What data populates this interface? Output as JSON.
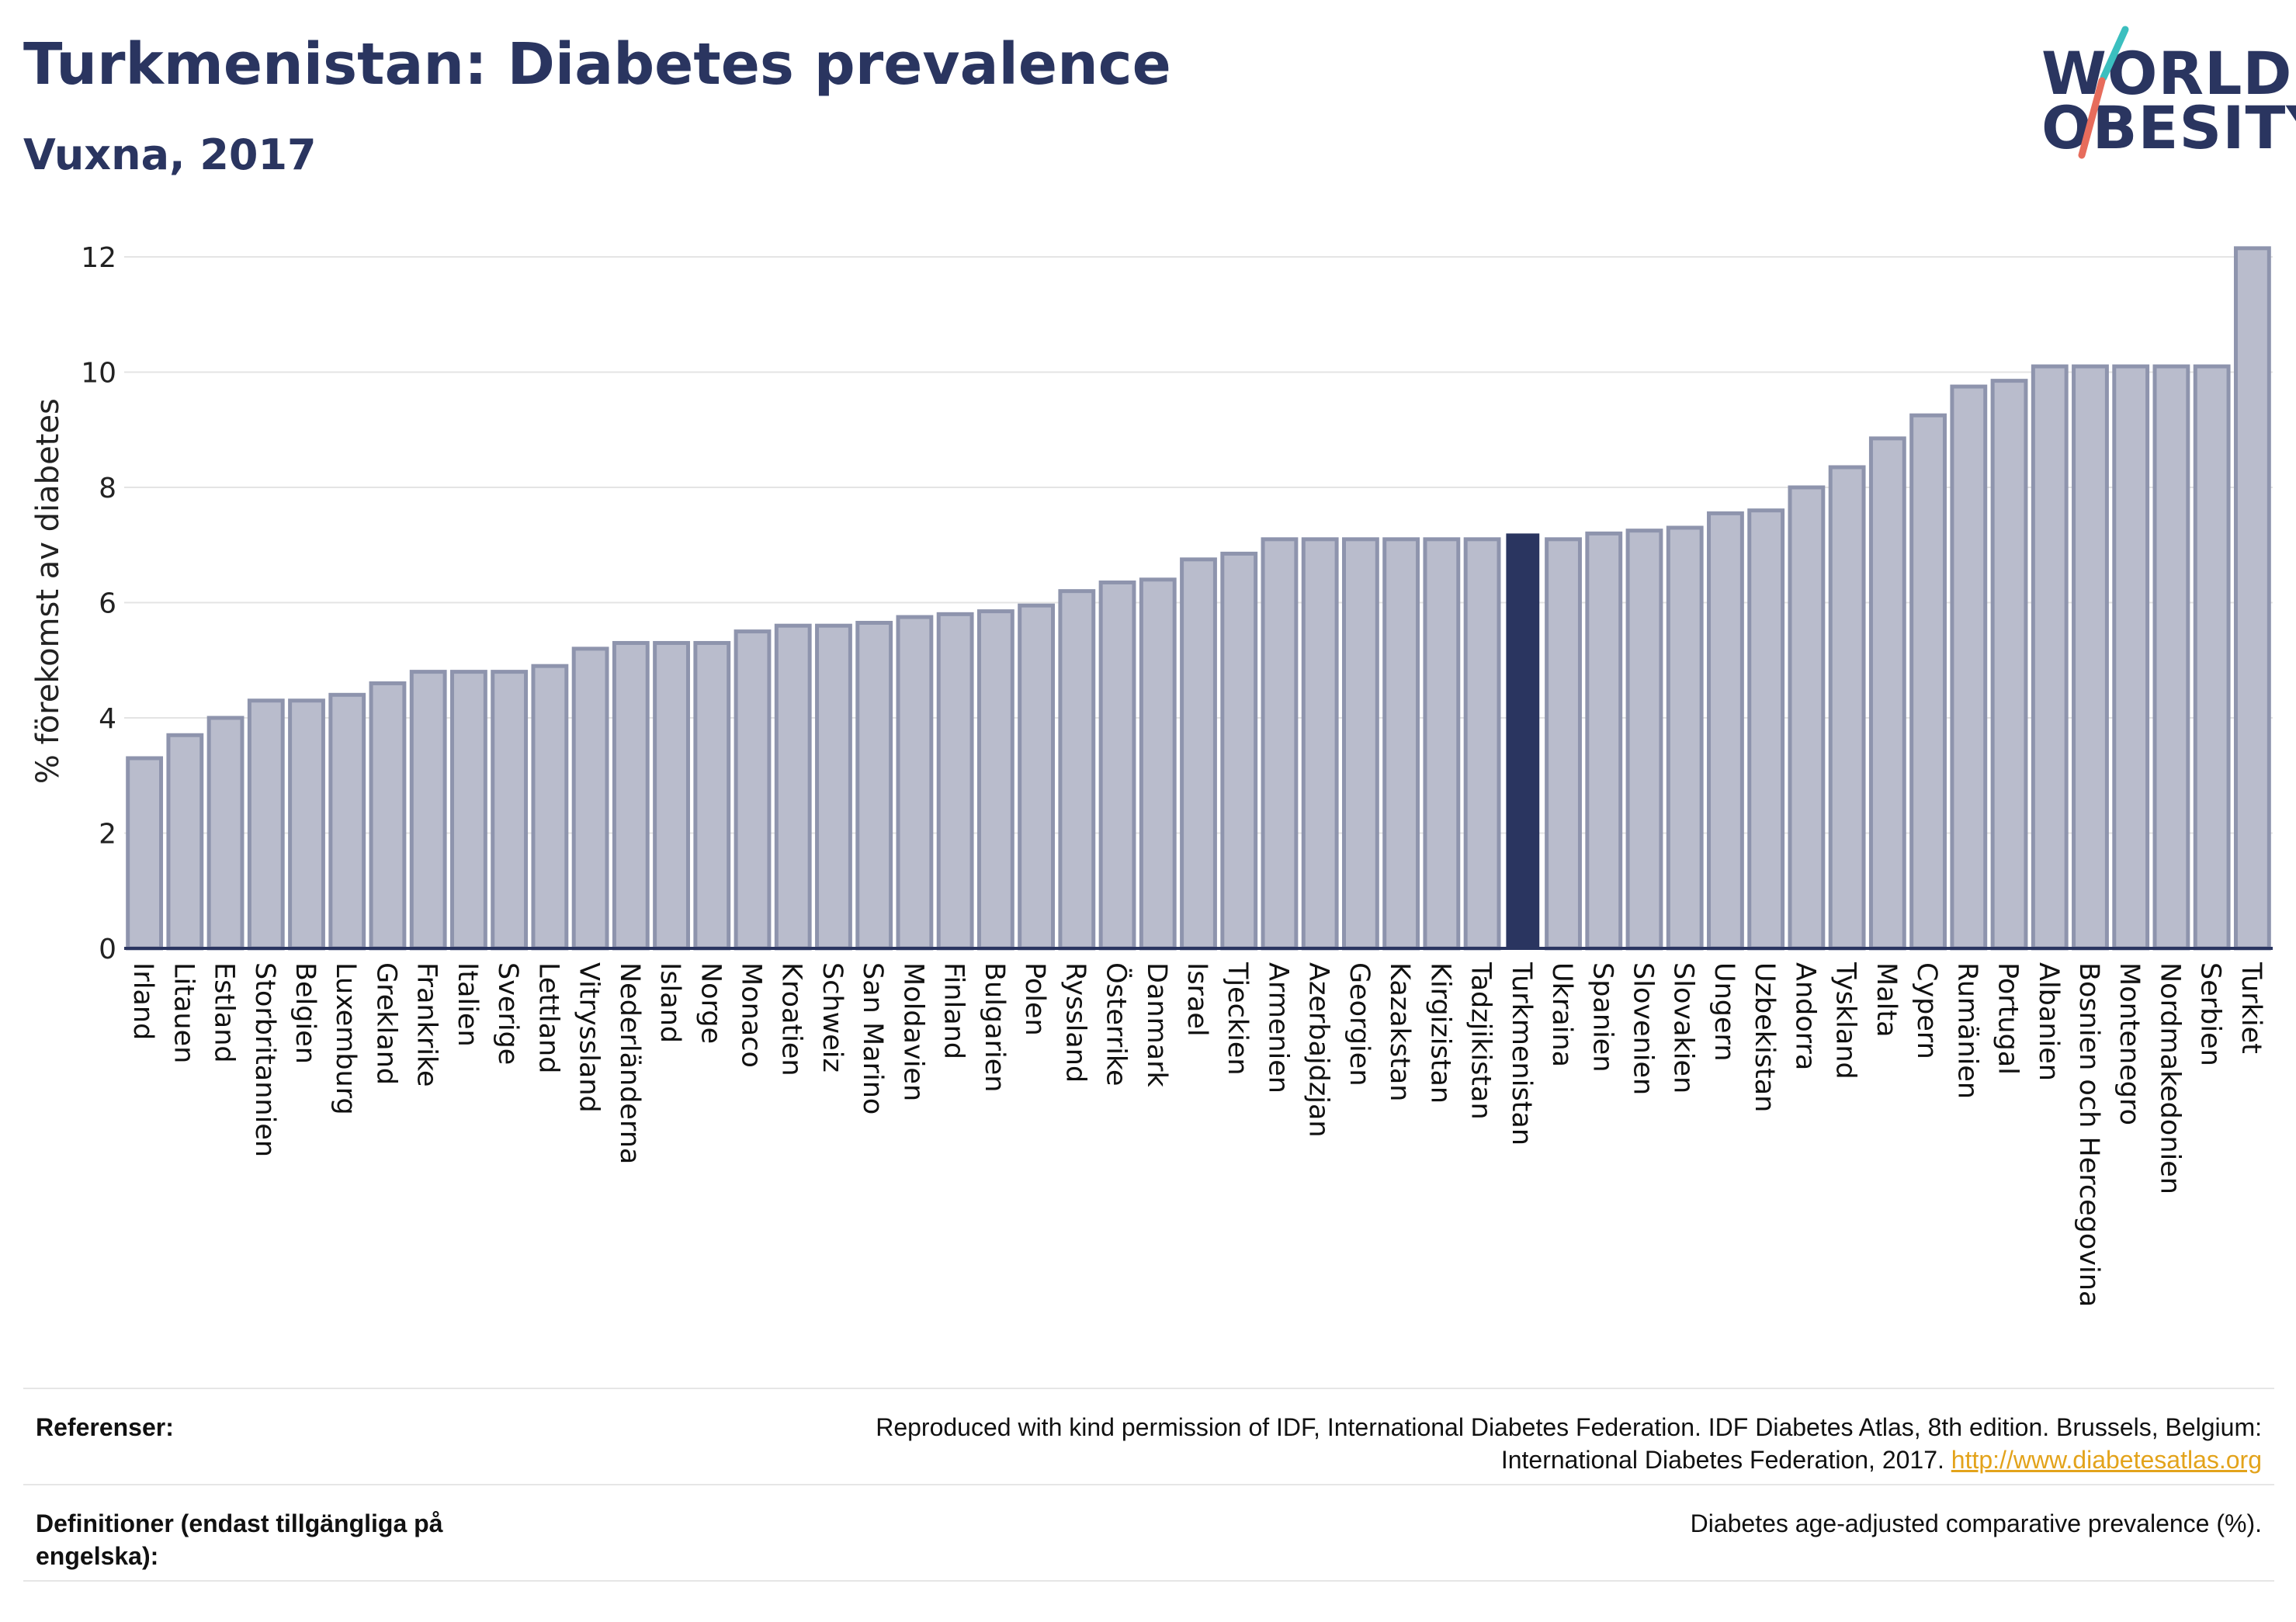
{
  "header": {
    "title": "Turkmenistan: Diabetes prevalence",
    "subtitle": "Vuxna, 2017"
  },
  "logo": {
    "line1": "WORLD",
    "line2": "OBESITY"
  },
  "colors": {
    "bar": "#b9bccc",
    "bar_border": "#8e94ad",
    "highlight": "#2a3560",
    "grid": "#e4e4e4",
    "text": "#2a3560",
    "logo_teal": "#3bbfbf",
    "logo_red": "#e76c5c"
  },
  "chart_data": {
    "type": "bar",
    "ylabel": "% förekomst av diabetes",
    "ylim": [
      0,
      12.5
    ],
    "yticks": [
      0,
      2,
      4,
      6,
      8,
      10,
      12
    ],
    "grid": true,
    "highlight": "Turkmenistan",
    "categories": [
      "Irland",
      "Litauen",
      "Estland",
      "Storbritannien",
      "Belgien",
      "Luxemburg",
      "Grekland",
      "Frankrike",
      "Italien",
      "Sverige",
      "Lettland",
      "Vitryssland",
      "Nederländerna",
      "Island",
      "Norge",
      "Monaco",
      "Kroatien",
      "Schweiz",
      "San Marino",
      "Moldavien",
      "Finland",
      "Bulgarien",
      "Polen",
      "Ryssland",
      "Österrike",
      "Danmark",
      "Israel",
      "Tjeckien",
      "Armenien",
      "Azerbajdzjan",
      "Georgien",
      "Kazakstan",
      "Kirgizistan",
      "Tadzjikistan",
      "Turkmenistan",
      "Ukraina",
      "Spanien",
      "Slovenien",
      "Slovakien",
      "Ungern",
      "Uzbekistan",
      "Andorra",
      "Tyskland",
      "Malta",
      "Cypern",
      "Rumänien",
      "Portugal",
      "Albanien",
      "Bosnien och Hercegovina",
      "Montenegro",
      "Nordmakedonien",
      "Serbien",
      "Turkiet"
    ],
    "values": [
      3.3,
      3.7,
      4.0,
      4.3,
      4.3,
      4.4,
      4.6,
      4.8,
      4.8,
      4.8,
      4.9,
      5.2,
      5.3,
      5.3,
      5.3,
      5.5,
      5.6,
      5.6,
      5.65,
      5.75,
      5.8,
      5.85,
      5.95,
      6.2,
      6.35,
      6.4,
      6.75,
      6.85,
      7.1,
      7.1,
      7.1,
      7.1,
      7.1,
      7.1,
      7.2,
      7.1,
      7.2,
      7.25,
      7.3,
      7.55,
      7.6,
      8.0,
      8.35,
      8.85,
      9.25,
      9.75,
      9.85,
      10.1,
      10.1,
      10.1,
      10.1,
      10.1,
      12.15
    ]
  },
  "references": {
    "ref_label": "Referenser:",
    "ref_text_line1": "Reproduced with kind permission of IDF, International Diabetes Federation. IDF Diabetes Atlas, 8th edition. Brussels, Belgium:",
    "ref_text_line2": "International Diabetes Federation, 2017.",
    "ref_link": "http://www.diabetesatlas.org",
    "def_label": "Definitioner (endast tillgängliga på engelska):",
    "def_text": "Diabetes age-adjusted comparative prevalence (%)."
  }
}
